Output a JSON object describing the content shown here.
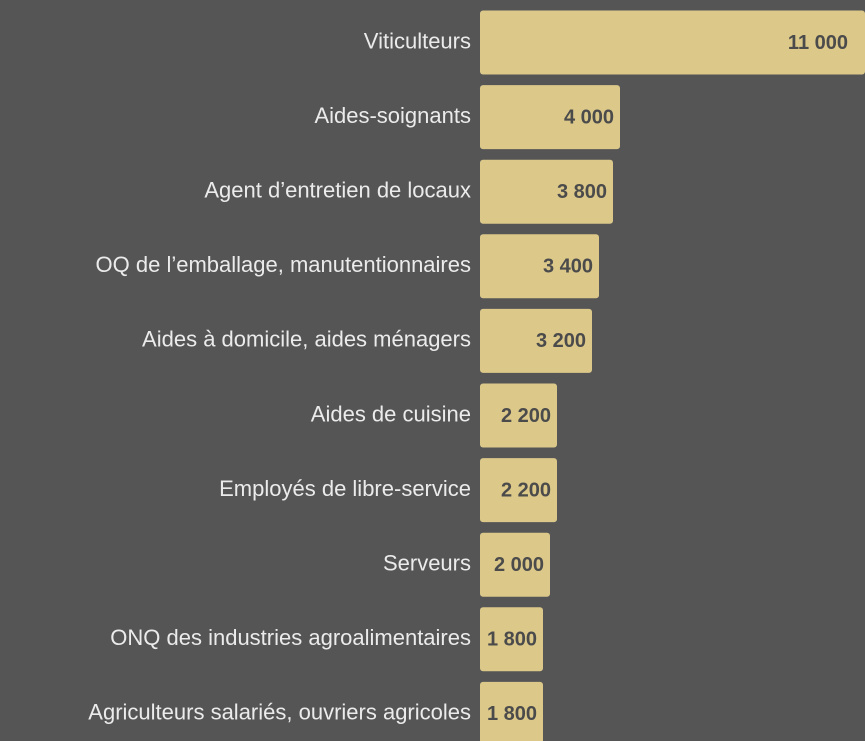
{
  "chart_data": {
    "type": "bar",
    "orientation": "horizontal",
    "categories": [
      "Viticulteurs",
      "Aides-soignants",
      "Agent d’entretien de locaux",
      "OQ de l’emballage, manutentionnaires",
      "Aides à domicile, aides ménagers",
      "Aides de cuisine",
      "Employés de libre-service",
      "Serveurs",
      "ONQ des industries agroalimentaires",
      "Agriculteurs salariés, ouvriers agricoles"
    ],
    "values": [
      11000,
      4000,
      3800,
      3400,
      3200,
      2200,
      2200,
      2000,
      1800,
      1800
    ],
    "value_labels": [
      "11 000",
      "4 000",
      "3 800",
      "3 400",
      "3 200",
      "2 200",
      "2 200",
      "2 000",
      "1 800",
      "1 800"
    ],
    "color": "#dcc98a",
    "xlim": [
      0,
      11000
    ]
  }
}
